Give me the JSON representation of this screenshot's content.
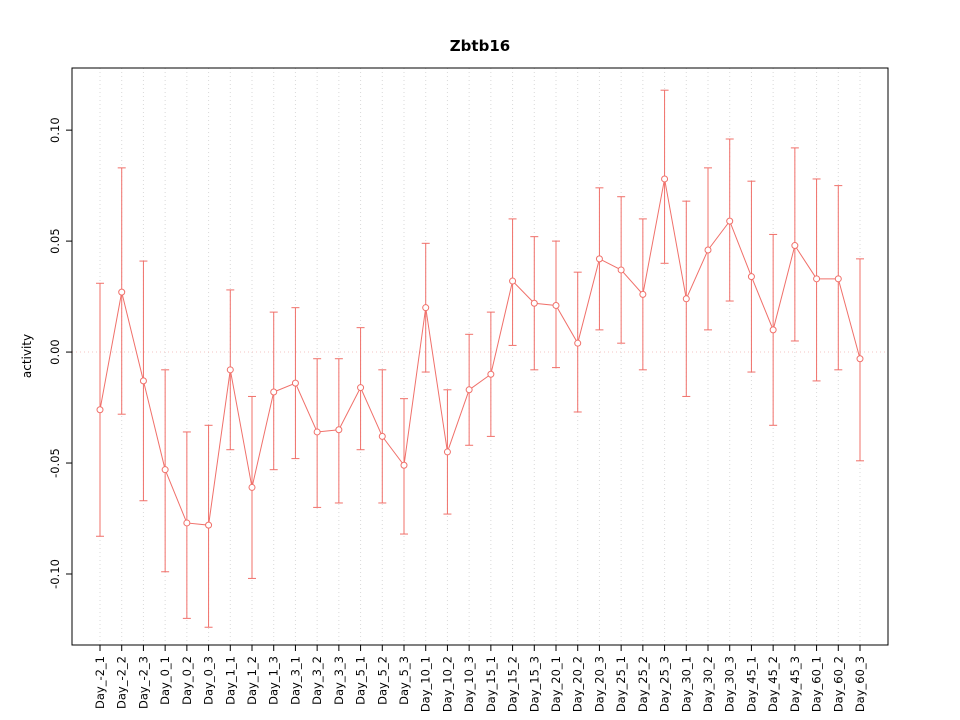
{
  "chart_data": {
    "type": "line",
    "title": "Zbtb16",
    "ylabel": "activity",
    "ylim": [
      -0.132,
      0.128
    ],
    "grid": "vertical-dotted",
    "zero_line": true,
    "legend": "none",
    "series_color": "#f0706a",
    "grid_color": "#d9d9d9",
    "zero_line_color": "#f5c6c3",
    "yticks": [
      {
        "v": -0.1,
        "label": "-0.10"
      },
      {
        "v": -0.05,
        "label": "-0.05"
      },
      {
        "v": 0.0,
        "label": "0.00"
      },
      {
        "v": 0.05,
        "label": "0.05"
      },
      {
        "v": 0.1,
        "label": "0.10"
      }
    ],
    "categories": [
      "Day_-2_1",
      "Day_-2_2",
      "Day_-2_3",
      "Day_0_1",
      "Day_0_2",
      "Day_0_3",
      "Day_1_1",
      "Day_1_2",
      "Day_1_3",
      "Day_3_1",
      "Day_3_2",
      "Day_3_3",
      "Day_5_1",
      "Day_5_2",
      "Day_5_3",
      "Day_10_1",
      "Day_10_2",
      "Day_10_3",
      "Day_15_1",
      "Day_15_2",
      "Day_15_3",
      "Day_20_1",
      "Day_20_2",
      "Day_20_3",
      "Day_25_1",
      "Day_25_2",
      "Day_25_3",
      "Day_30_1",
      "Day_30_2",
      "Day_30_3",
      "Day_45_1",
      "Day_45_2",
      "Day_45_3",
      "Day_60_1",
      "Day_60_2",
      "Day_60_3"
    ],
    "values": [
      -0.026,
      0.027,
      -0.013,
      -0.053,
      -0.077,
      -0.078,
      -0.008,
      -0.061,
      -0.018,
      -0.014,
      -0.036,
      -0.035,
      -0.016,
      -0.038,
      -0.051,
      0.02,
      -0.045,
      -0.017,
      -0.01,
      0.032,
      0.022,
      0.021,
      0.004,
      0.042,
      0.037,
      0.026,
      0.078,
      0.024,
      0.046,
      0.059,
      0.034,
      0.01,
      0.048,
      0.033,
      0.033,
      -0.003
    ],
    "lower": [
      -0.083,
      -0.028,
      -0.067,
      -0.099,
      -0.12,
      -0.124,
      -0.044,
      -0.102,
      -0.053,
      -0.048,
      -0.07,
      -0.068,
      -0.044,
      -0.068,
      -0.082,
      -0.009,
      -0.073,
      -0.042,
      -0.038,
      0.003,
      -0.008,
      -0.007,
      -0.027,
      0.01,
      0.004,
      -0.008,
      0.04,
      -0.02,
      0.01,
      0.023,
      -0.009,
      -0.033,
      0.005,
      -0.013,
      -0.008,
      -0.049
    ],
    "upper": [
      0.031,
      0.083,
      0.041,
      -0.008,
      -0.036,
      -0.033,
      0.028,
      -0.02,
      0.018,
      0.02,
      -0.003,
      -0.003,
      0.011,
      -0.008,
      -0.021,
      0.049,
      -0.017,
      0.008,
      0.018,
      0.06,
      0.052,
      0.05,
      0.036,
      0.074,
      0.07,
      0.06,
      0.118,
      0.068,
      0.083,
      0.096,
      0.077,
      0.053,
      0.092,
      0.078,
      0.075,
      0.042
    ]
  }
}
